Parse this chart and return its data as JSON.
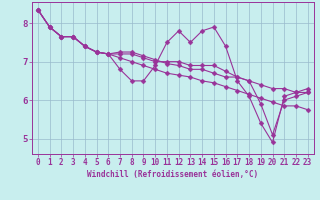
{
  "xlabel": "Windchill (Refroidissement éolien,°C)",
  "bg_color": "#c8eeee",
  "line_color": "#993399",
  "grid_color": "#99bbcc",
  "axis_bar_color": "#6655aa",
  "xlim": [
    -0.5,
    23.5
  ],
  "ylim": [
    4.6,
    8.55
  ],
  "xticks": [
    0,
    1,
    2,
    3,
    4,
    5,
    6,
    7,
    8,
    9,
    10,
    11,
    12,
    13,
    14,
    15,
    16,
    17,
    18,
    19,
    20,
    21,
    22,
    23
  ],
  "yticks": [
    5,
    6,
    7,
    8
  ],
  "series": [
    [
      8.35,
      7.9,
      7.65,
      7.65,
      7.4,
      7.25,
      7.2,
      6.8,
      6.5,
      6.5,
      6.9,
      7.5,
      7.8,
      7.5,
      7.8,
      7.9,
      7.4,
      6.5,
      6.1,
      5.4,
      4.9,
      6.1,
      6.2,
      6.3
    ],
    [
      8.35,
      7.9,
      7.65,
      7.65,
      7.4,
      7.25,
      7.2,
      7.25,
      7.25,
      7.15,
      7.05,
      6.95,
      6.9,
      6.8,
      6.8,
      6.7,
      6.6,
      6.6,
      6.5,
      6.4,
      6.3,
      6.3,
      6.2,
      6.2
    ],
    [
      8.35,
      7.9,
      7.65,
      7.65,
      7.4,
      7.25,
      7.2,
      7.1,
      7.0,
      6.9,
      6.8,
      6.7,
      6.65,
      6.6,
      6.5,
      6.45,
      6.35,
      6.25,
      6.15,
      6.05,
      5.95,
      5.85,
      5.85,
      5.75
    ],
    [
      8.35,
      7.9,
      7.65,
      7.65,
      7.4,
      7.25,
      7.2,
      7.2,
      7.2,
      7.1,
      7.0,
      7.0,
      7.0,
      6.9,
      6.9,
      6.9,
      6.75,
      6.6,
      6.5,
      5.9,
      5.1,
      6.0,
      6.1,
      6.2
    ]
  ],
  "marker": "D",
  "marker_size": 2.5,
  "line_width": 0.8,
  "tick_fontsize": 5.5,
  "xlabel_fontsize": 5.5
}
